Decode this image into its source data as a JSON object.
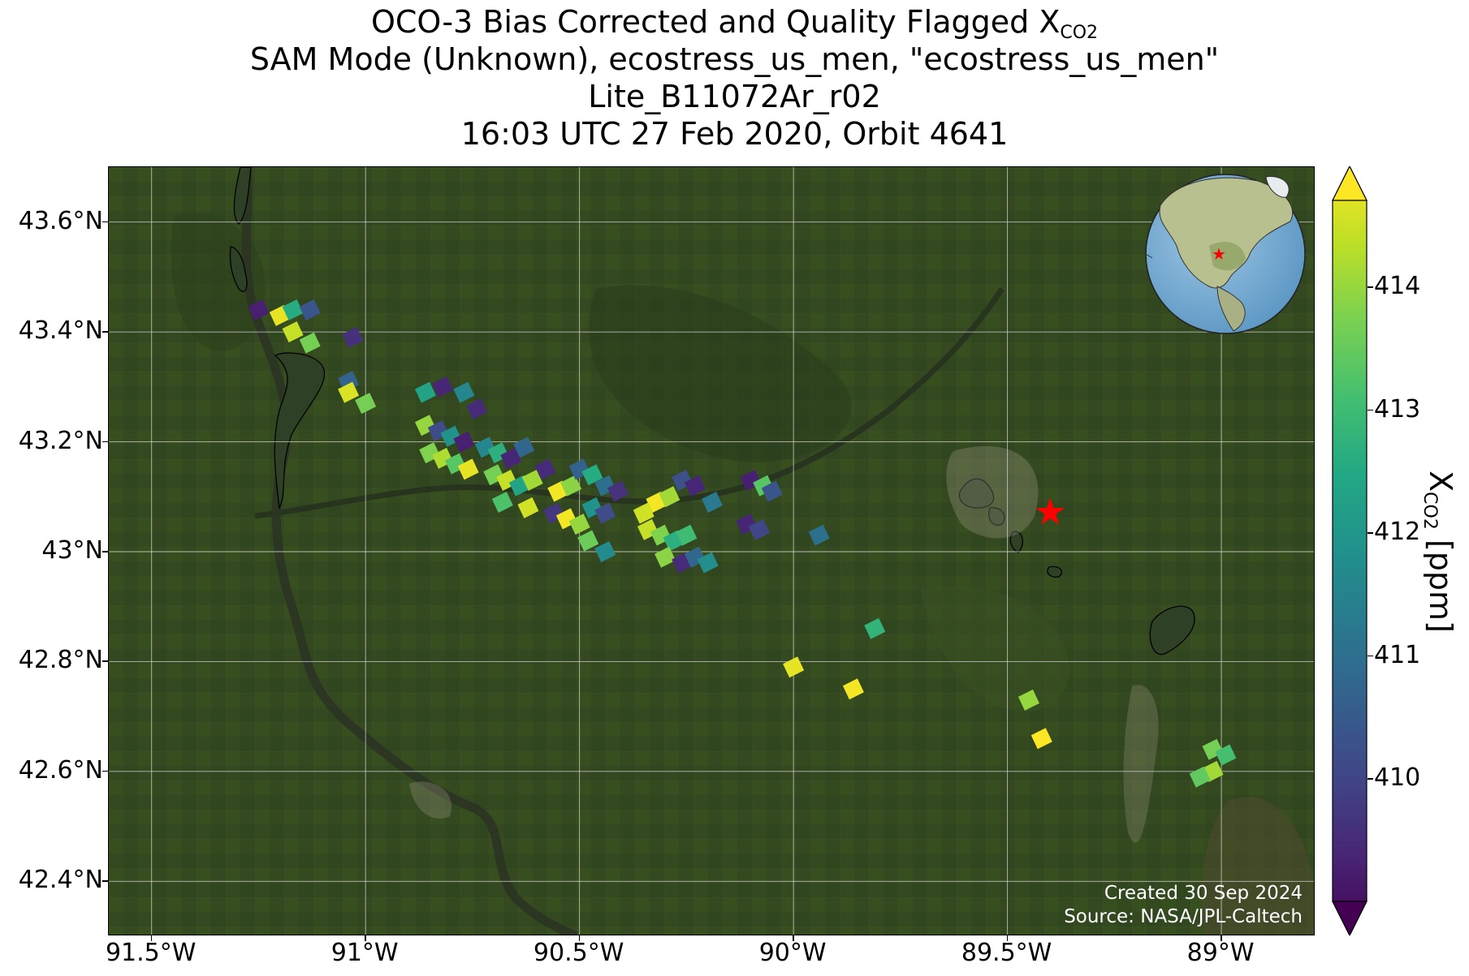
{
  "title": {
    "line1_prefix": "OCO-3 Bias Corrected and Quality Flagged X",
    "line1_sub": "CO2",
    "line2": "SAM Mode (Unknown), ecostress_us_men, \"ecostress_us_men\"",
    "line3": "Lite_B11072Ar_r02",
    "line4": "16:03 UTC 27 Feb 2020, Orbit 4641"
  },
  "map": {
    "lon_range": [
      -91.6,
      -88.78
    ],
    "lat_range": [
      42.3,
      43.7
    ],
    "lat_ticks": [
      {
        "value": 42.4,
        "label": "42.4°N"
      },
      {
        "value": 42.6,
        "label": "42.6°N"
      },
      {
        "value": 42.8,
        "label": "42.8°N"
      },
      {
        "value": 43.0,
        "label": "43°N"
      },
      {
        "value": 43.2,
        "label": "43.2°N"
      },
      {
        "value": 43.4,
        "label": "43.4°N"
      },
      {
        "value": 43.6,
        "label": "43.6°N"
      }
    ],
    "lon_ticks": [
      {
        "value": -91.5,
        "label": "91.5°W"
      },
      {
        "value": -91.0,
        "label": "91°W"
      },
      {
        "value": -90.5,
        "label": "90.5°W"
      },
      {
        "value": -90.0,
        "label": "90°W"
      },
      {
        "value": -89.5,
        "label": "89.5°W"
      },
      {
        "value": -89.0,
        "label": "89°W"
      }
    ],
    "gridlines": true,
    "background": "satellite imagery (green farmland, Mississippi River valley, Madison WI area)",
    "colors": {
      "land": "#34491f",
      "river": "#2b3422",
      "urban": "#a39a88",
      "lake_fill": "#2e4026"
    },
    "target": {
      "lon": -89.4,
      "lat": 43.073,
      "marker": "red-star",
      "color": "#ff0000"
    },
    "inset_globe": {
      "center_lon": -90,
      "center_lat": 43,
      "marker": "red-star"
    },
    "credit_line1": "Created 30 Sep 2024",
    "credit_line2": "Source: NASA/JPL-Caltech"
  },
  "colorbar": {
    "colormap": "viridis",
    "vmin": 409.0,
    "vmax": 414.7,
    "extend": "both",
    "ticks": [
      {
        "value": 410,
        "label": "410"
      },
      {
        "value": 411,
        "label": "411"
      },
      {
        "value": 412,
        "label": "412"
      },
      {
        "value": 413,
        "label": "413"
      },
      {
        "value": 414,
        "label": "414"
      }
    ],
    "label_prefix": "X",
    "label_sub": "CO2",
    "label_suffix": " [ppm]"
  },
  "soundings": [
    {
      "lon": -91.25,
      "lat": 43.44,
      "xco2": 409.5
    },
    {
      "lon": -91.2,
      "lat": 43.43,
      "xco2": 414.5
    },
    {
      "lon": -91.17,
      "lat": 43.44,
      "xco2": 412.5
    },
    {
      "lon": -91.13,
      "lat": 43.44,
      "xco2": 410.5
    },
    {
      "lon": -91.17,
      "lat": 43.4,
      "xco2": 414.2
    },
    {
      "lon": -91.13,
      "lat": 43.38,
      "xco2": 413.5
    },
    {
      "lon": -91.03,
      "lat": 43.39,
      "xco2": 409.8
    },
    {
      "lon": -91.04,
      "lat": 43.31,
      "xco2": 410.8
    },
    {
      "lon": -91.04,
      "lat": 43.29,
      "xco2": 414.4
    },
    {
      "lon": -91.0,
      "lat": 43.27,
      "xco2": 413.5
    },
    {
      "lon": -90.86,
      "lat": 43.29,
      "xco2": 412.3
    },
    {
      "lon": -90.82,
      "lat": 43.3,
      "xco2": 409.6
    },
    {
      "lon": -90.77,
      "lat": 43.29,
      "xco2": 411.6
    },
    {
      "lon": -90.74,
      "lat": 43.26,
      "xco2": 409.7
    },
    {
      "lon": -90.86,
      "lat": 43.23,
      "xco2": 413.8
    },
    {
      "lon": -90.83,
      "lat": 43.22,
      "xco2": 410.3
    },
    {
      "lon": -90.8,
      "lat": 43.21,
      "xco2": 411.9
    },
    {
      "lon": -90.77,
      "lat": 43.2,
      "xco2": 409.5
    },
    {
      "lon": -90.85,
      "lat": 43.18,
      "xco2": 413.6
    },
    {
      "lon": -90.82,
      "lat": 43.17,
      "xco2": 414.0
    },
    {
      "lon": -90.79,
      "lat": 43.16,
      "xco2": 413.2
    },
    {
      "lon": -90.76,
      "lat": 43.15,
      "xco2": 414.5
    },
    {
      "lon": -90.72,
      "lat": 43.19,
      "xco2": 411.6
    },
    {
      "lon": -90.69,
      "lat": 43.18,
      "xco2": 412.6
    },
    {
      "lon": -90.66,
      "lat": 43.17,
      "xco2": 409.6
    },
    {
      "lon": -90.63,
      "lat": 43.19,
      "xco2": 410.9
    },
    {
      "lon": -90.7,
      "lat": 43.14,
      "xco2": 413.5
    },
    {
      "lon": -90.67,
      "lat": 43.13,
      "xco2": 414.2
    },
    {
      "lon": -90.64,
      "lat": 43.12,
      "xco2": 412.3
    },
    {
      "lon": -90.61,
      "lat": 43.13,
      "xco2": 413.9
    },
    {
      "lon": -90.58,
      "lat": 43.15,
      "xco2": 409.7
    },
    {
      "lon": -90.55,
      "lat": 43.11,
      "xco2": 414.6
    },
    {
      "lon": -90.52,
      "lat": 43.12,
      "xco2": 413.7
    },
    {
      "lon": -90.5,
      "lat": 43.15,
      "xco2": 410.8
    },
    {
      "lon": -90.47,
      "lat": 43.14,
      "xco2": 412.5
    },
    {
      "lon": -90.44,
      "lat": 43.12,
      "xco2": 411.1
    },
    {
      "lon": -90.41,
      "lat": 43.11,
      "xco2": 409.8
    },
    {
      "lon": -90.68,
      "lat": 43.09,
      "xco2": 413.1
    },
    {
      "lon": -90.62,
      "lat": 43.08,
      "xco2": 414.3
    },
    {
      "lon": -90.56,
      "lat": 43.07,
      "xco2": 409.9
    },
    {
      "lon": -90.53,
      "lat": 43.06,
      "xco2": 414.6
    },
    {
      "lon": -90.5,
      "lat": 43.05,
      "xco2": 413.8
    },
    {
      "lon": -90.47,
      "lat": 43.08,
      "xco2": 411.9
    },
    {
      "lon": -90.44,
      "lat": 43.07,
      "xco2": 410.3
    },
    {
      "lon": -90.48,
      "lat": 43.02,
      "xco2": 413.4
    },
    {
      "lon": -90.44,
      "lat": 43.0,
      "xco2": 411.7
    },
    {
      "lon": -90.35,
      "lat": 43.07,
      "xco2": 414.3
    },
    {
      "lon": -90.32,
      "lat": 43.09,
      "xco2": 414.6
    },
    {
      "lon": -90.29,
      "lat": 43.1,
      "xco2": 413.9
    },
    {
      "lon": -90.26,
      "lat": 43.13,
      "xco2": 410.4
    },
    {
      "lon": -90.23,
      "lat": 43.12,
      "xco2": 409.6
    },
    {
      "lon": -90.19,
      "lat": 43.09,
      "xco2": 411.3
    },
    {
      "lon": -90.34,
      "lat": 43.04,
      "xco2": 414.2
    },
    {
      "lon": -90.31,
      "lat": 43.03,
      "xco2": 413.6
    },
    {
      "lon": -90.28,
      "lat": 43.02,
      "xco2": 412.6
    },
    {
      "lon": -90.25,
      "lat": 43.03,
      "xco2": 412.9
    },
    {
      "lon": -90.3,
      "lat": 42.99,
      "xco2": 413.7
    },
    {
      "lon": -90.26,
      "lat": 42.98,
      "xco2": 409.7
    },
    {
      "lon": -90.23,
      "lat": 42.99,
      "xco2": 410.9
    },
    {
      "lon": -90.2,
      "lat": 42.98,
      "xco2": 411.8
    },
    {
      "lon": -90.1,
      "lat": 43.13,
      "xco2": 409.5
    },
    {
      "lon": -90.07,
      "lat": 43.12,
      "xco2": 413.2
    },
    {
      "lon": -90.05,
      "lat": 43.11,
      "xco2": 410.5
    },
    {
      "lon": -90.11,
      "lat": 43.05,
      "xco2": 409.6
    },
    {
      "lon": -90.08,
      "lat": 43.04,
      "xco2": 410.2
    },
    {
      "lon": -89.94,
      "lat": 43.03,
      "xco2": 411.1
    },
    {
      "lon": -89.81,
      "lat": 42.86,
      "xco2": 412.7
    },
    {
      "lon": -90.0,
      "lat": 42.79,
      "xco2": 414.5
    },
    {
      "lon": -89.86,
      "lat": 42.75,
      "xco2": 414.6
    },
    {
      "lon": -89.45,
      "lat": 42.73,
      "xco2": 413.8
    },
    {
      "lon": -89.42,
      "lat": 42.66,
      "xco2": 414.7
    },
    {
      "lon": -89.02,
      "lat": 42.64,
      "xco2": 413.5
    },
    {
      "lon": -88.99,
      "lat": 42.63,
      "xco2": 413.0
    },
    {
      "lon": -89.02,
      "lat": 42.6,
      "xco2": 413.9
    },
    {
      "lon": -89.05,
      "lat": 42.59,
      "xco2": 413.3
    }
  ]
}
